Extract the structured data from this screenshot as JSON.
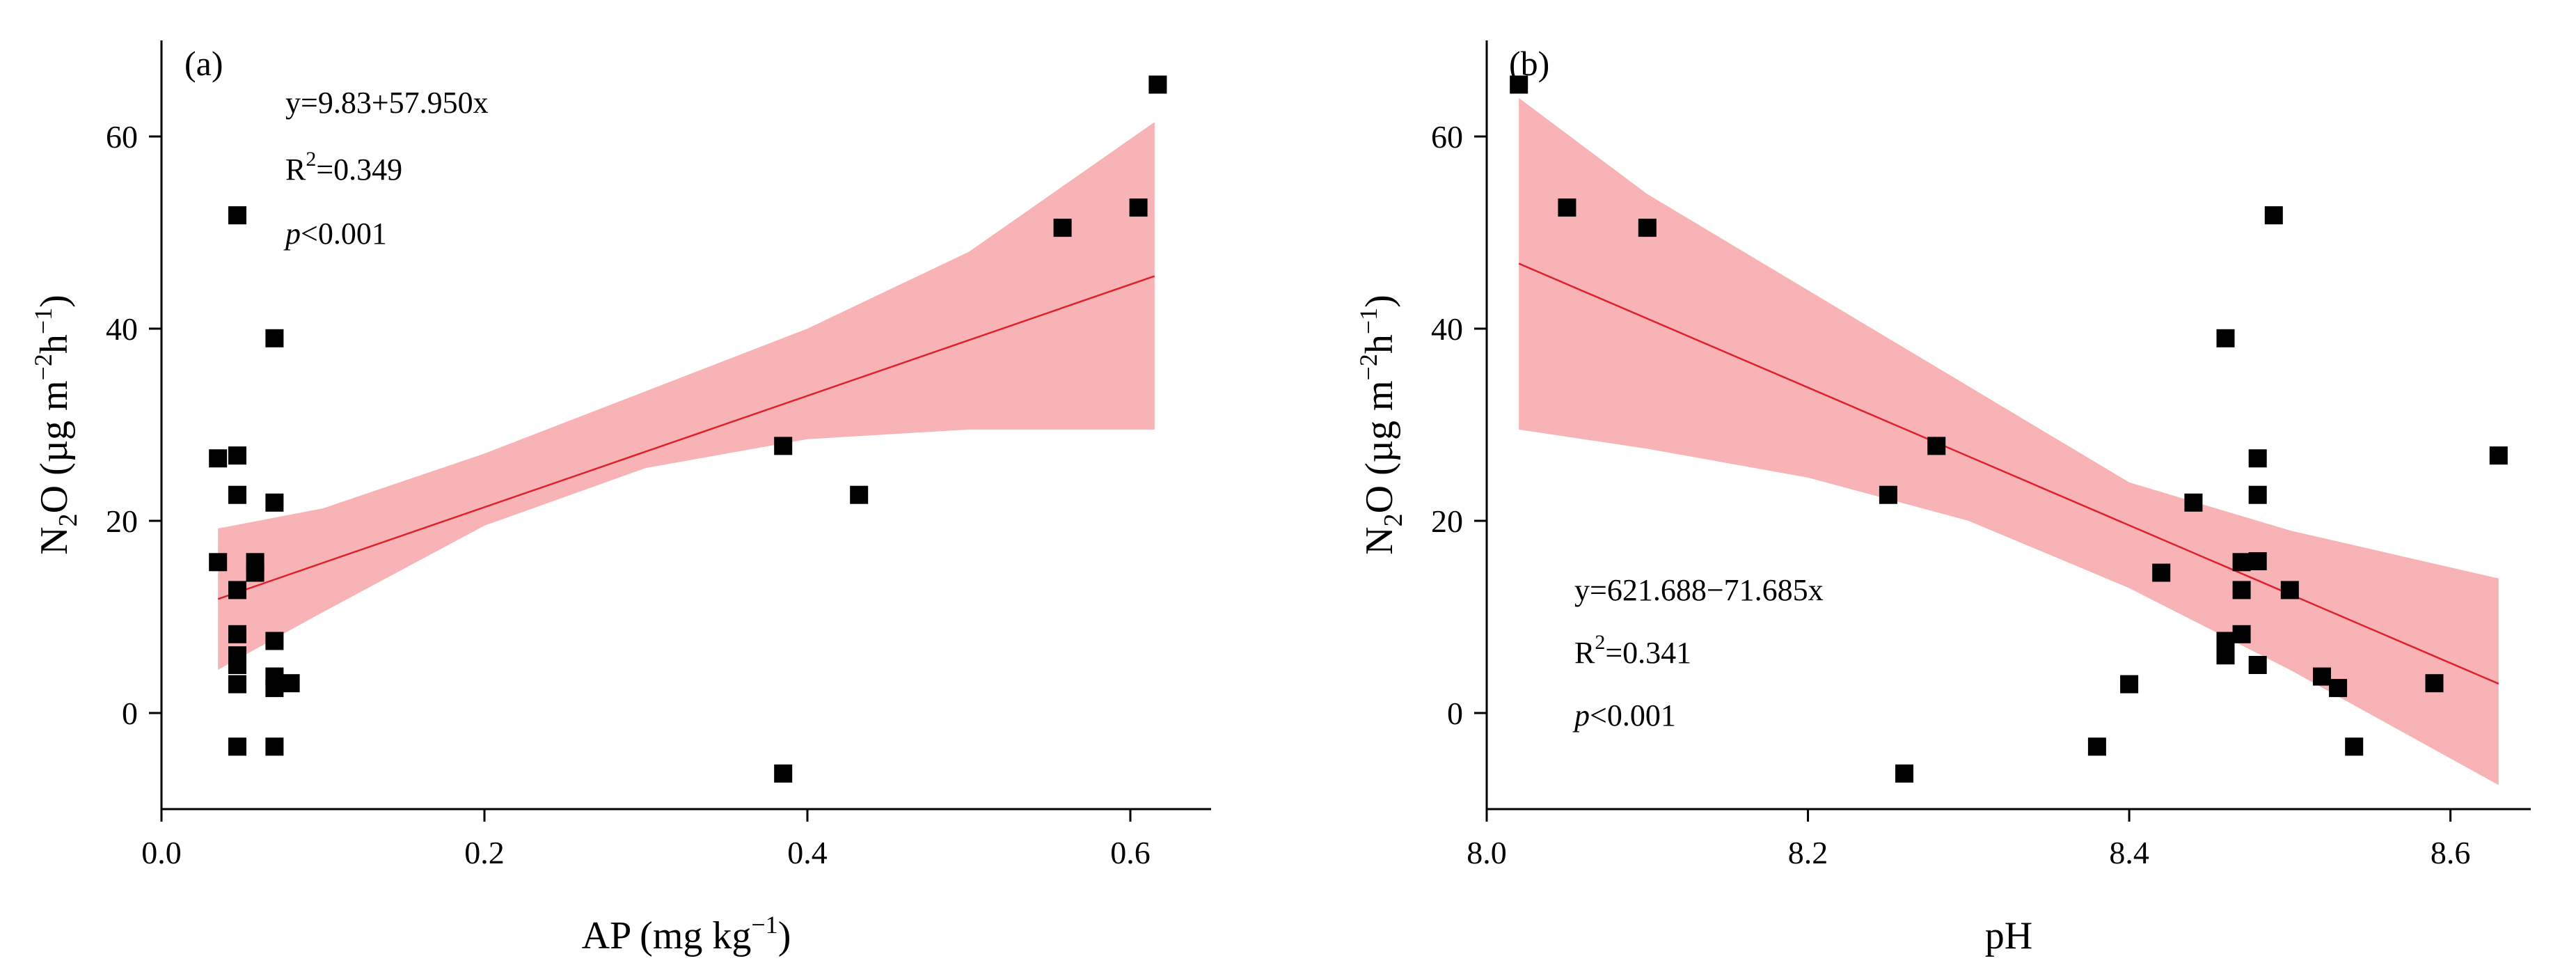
{
  "chart_data": [
    {
      "type": "scatter",
      "panel_label": "(a)",
      "xlabel": {
        "main": "AP (mg kg",
        "sup": "−1",
        "close": ")"
      },
      "ylabel": {
        "n": "N",
        "sub": "2",
        "o": "O (µg m",
        "sup1": "−2",
        "h": "h",
        "sup2": "−1",
        "close": ")"
      },
      "xlim": [
        0.0,
        0.65
      ],
      "ylim": [
        -10,
        70
      ],
      "xticks": [
        0.0,
        0.2,
        0.4,
        0.6
      ],
      "xtick_labels": [
        "0.0",
        "0.2",
        "0.4",
        "0.6"
      ],
      "yticks": [
        0,
        20,
        40,
        60
      ],
      "ytick_labels": [
        "0",
        "20",
        "40",
        "60"
      ],
      "equation": "y=9.83+57.950x",
      "r2": {
        "base": "R",
        "sup": "2",
        "rest": "=0.349"
      },
      "p_value": {
        "italic": "p",
        "rest": "<0.001"
      },
      "fit": {
        "intercept": 9.83,
        "slope": 57.95,
        "x_range": [
          0.035,
          0.615
        ]
      },
      "confidence_band": {
        "x": [
          0.035,
          0.1,
          0.2,
          0.3,
          0.4,
          0.5,
          0.615
        ],
        "lower": [
          4.5,
          10.5,
          19.5,
          25.5,
          28.5,
          29.5,
          29.5
        ],
        "upper": [
          19.2,
          21.3,
          27.0,
          33.5,
          40.0,
          48.0,
          61.5
        ]
      },
      "points": [
        [
          0.035,
          26.5
        ],
        [
          0.035,
          15.7
        ],
        [
          0.047,
          51.8
        ],
        [
          0.047,
          26.8
        ],
        [
          0.047,
          22.7
        ],
        [
          0.047,
          12.8
        ],
        [
          0.047,
          8.2
        ],
        [
          0.047,
          6.0
        ],
        [
          0.047,
          5.0
        ],
        [
          0.047,
          3.0
        ],
        [
          0.047,
          -3.5
        ],
        [
          0.058,
          15.7
        ],
        [
          0.058,
          14.6
        ],
        [
          0.07,
          39.0
        ],
        [
          0.07,
          21.9
        ],
        [
          0.07,
          7.5
        ],
        [
          0.07,
          3.8
        ],
        [
          0.07,
          2.6
        ],
        [
          0.07,
          -3.5
        ],
        [
          0.08,
          3.1
        ],
        [
          0.385,
          27.8
        ],
        [
          0.385,
          -6.3
        ],
        [
          0.432,
          22.7
        ],
        [
          0.558,
          50.5
        ],
        [
          0.605,
          52.6
        ],
        [
          0.617,
          65.4
        ]
      ]
    },
    {
      "type": "scatter",
      "panel_label": "(b)",
      "xlabel": {
        "main": "pH",
        "sup": "",
        "close": ""
      },
      "ylabel": {
        "n": "N",
        "sub": "2",
        "o": "O (µg m",
        "sup1": "−2",
        "h": "h",
        "sup2": "−1",
        "close": ")"
      },
      "xlim": [
        8.0,
        8.65
      ],
      "ylim": [
        -10,
        70
      ],
      "xticks": [
        8.0,
        8.2,
        8.4,
        8.6
      ],
      "xtick_labels": [
        "8.0",
        "8.2",
        "8.4",
        "8.6"
      ],
      "yticks": [
        0,
        20,
        40,
        60
      ],
      "ytick_labels": [
        "0",
        "20",
        "40",
        "60"
      ],
      "equation": "y=621.688−71.685x",
      "r2": {
        "base": "R",
        "sup": "2",
        "rest": "=0.341"
      },
      "p_value": {
        "italic": "p",
        "rest": "<0.001"
      },
      "fit": {
        "intercept": 621.688,
        "slope": -71.685,
        "x_range": [
          8.02,
          8.63
        ]
      },
      "confidence_band": {
        "x": [
          8.02,
          8.1,
          8.2,
          8.3,
          8.4,
          8.5,
          8.63
        ],
        "lower": [
          29.5,
          27.5,
          24.5,
          20.0,
          13.0,
          4.5,
          -7.5
        ],
        "upper": [
          64.0,
          54.0,
          44.0,
          34.0,
          24.0,
          19.0,
          14.0
        ]
      },
      "points": [
        [
          8.02,
          65.4
        ],
        [
          8.05,
          52.6
        ],
        [
          8.1,
          50.5
        ],
        [
          8.25,
          22.7
        ],
        [
          8.26,
          -6.3
        ],
        [
          8.28,
          27.8
        ],
        [
          8.38,
          -3.5
        ],
        [
          8.4,
          3.0
        ],
        [
          8.42,
          14.6
        ],
        [
          8.44,
          21.9
        ],
        [
          8.46,
          39.0
        ],
        [
          8.46,
          7.5
        ],
        [
          8.46,
          6.0
        ],
        [
          8.47,
          15.7
        ],
        [
          8.47,
          12.8
        ],
        [
          8.47,
          8.2
        ],
        [
          8.48,
          26.5
        ],
        [
          8.48,
          22.7
        ],
        [
          8.48,
          15.8
        ],
        [
          8.48,
          5.0
        ],
        [
          8.49,
          51.8
        ],
        [
          8.5,
          12.8
        ],
        [
          8.52,
          3.8
        ],
        [
          8.53,
          2.6
        ],
        [
          8.54,
          -3.5
        ],
        [
          8.59,
          3.1
        ],
        [
          8.63,
          26.8
        ]
      ]
    }
  ]
}
